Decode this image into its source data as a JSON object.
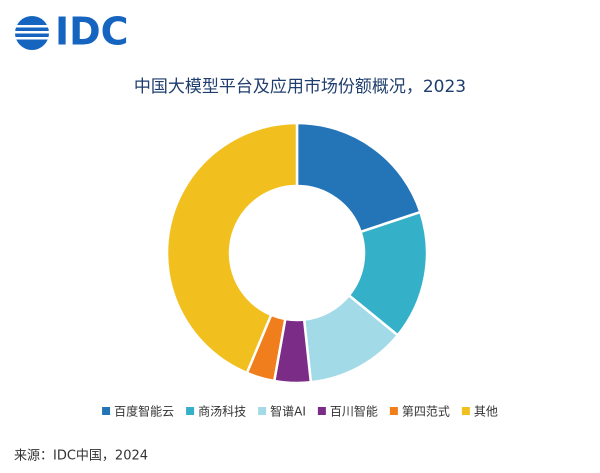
{
  "logo": "IDC",
  "chart_data": {
    "type": "donut",
    "title": "中国大模型平台及应用市场份额概况，2023",
    "categories": [
      "百度智能云",
      "商汤科技",
      "智谱AI",
      "百川智能",
      "第四范式",
      "其他"
    ],
    "values": [
      19.9,
      16.0,
      12.4,
      4.5,
      3.5,
      43.7
    ],
    "colors": [
      "#2474b8",
      "#35b0c9",
      "#a3dae8",
      "#7b2c86",
      "#f07e1c",
      "#f2c01e"
    ],
    "legend": "bottom"
  },
  "source": "来源：IDC中国，2024"
}
